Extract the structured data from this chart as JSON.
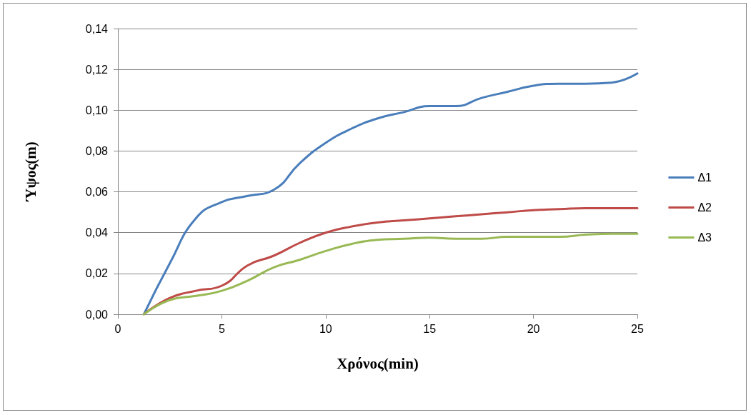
{
  "chart_data": {
    "type": "line",
    "xlabel": "Χρόνος(min)",
    "ylabel": "Ύψος(m)",
    "x": [
      1.25,
      2.5,
      3.75,
      5,
      6.25,
      7.5,
      8.75,
      10,
      11.25,
      12.5,
      13.75,
      15,
      16.25,
      17.5,
      18.75,
      20,
      21.25,
      22.5,
      23.75,
      25
    ],
    "series": [
      {
        "name": "Δ1",
        "color": "#4a7ebb",
        "values": [
          0,
          0.025,
          0.047,
          0.055,
          0.058,
          0.061,
          0.074,
          0.084,
          0.091,
          0.096,
          0.099,
          0.102,
          0.102,
          0.106,
          0.109,
          0.112,
          0.113,
          0.113,
          0.1135,
          0.118
        ]
      },
      {
        "name": "Δ2",
        "color": "#be4b48",
        "values": [
          0,
          0.008,
          0.0115,
          0.014,
          0.024,
          0.0287,
          0.035,
          0.04,
          0.043,
          0.045,
          0.046,
          0.047,
          0.048,
          0.049,
          0.05,
          0.051,
          0.0515,
          0.052,
          0.052,
          0.052
        ]
      },
      {
        "name": "Δ3",
        "color": "#98b954",
        "values": [
          0,
          0.007,
          0.009,
          0.0115,
          0.0165,
          0.023,
          0.0267,
          0.031,
          0.0345,
          0.0365,
          0.037,
          0.0375,
          0.037,
          0.037,
          0.038,
          0.038,
          0.038,
          0.039,
          0.0395,
          0.0395
        ]
      }
    ],
    "xlim": [
      0,
      25
    ],
    "xticks": [
      0,
      5,
      10,
      15,
      20,
      25
    ],
    "ylim": [
      0,
      0.14
    ],
    "yticks": [
      {
        "value": 0,
        "label": "0,00"
      },
      {
        "value": 0.02,
        "label": "0,02"
      },
      {
        "value": 0.04,
        "label": "0,04"
      },
      {
        "value": 0.06,
        "label": "0,06"
      },
      {
        "value": 0.08,
        "label": "0,08"
      },
      {
        "value": 0.1,
        "label": "0,10"
      },
      {
        "value": 0.12,
        "label": "0,12"
      },
      {
        "value": 0.14,
        "label": "0,14"
      }
    ],
    "grid": "y",
    "legend": "right",
    "marker": "none",
    "line_style": "solid"
  }
}
